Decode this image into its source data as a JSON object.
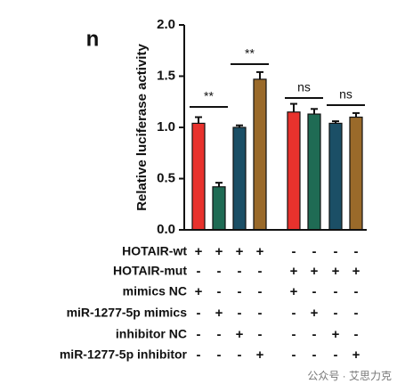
{
  "panel_label": "n",
  "chart_data": {
    "type": "bar",
    "ylabel": "Relative luciferase activity",
    "ylim": [
      0,
      2
    ],
    "yticks": [
      {
        "value": 0,
        "label": "0.0"
      },
      0.5,
      {
        "value": 1,
        "label": "1.0"
      },
      1.5,
      {
        "value": 2,
        "label": "2.0"
      }
    ],
    "values": [
      1.04,
      0.42,
      1.0,
      1.47,
      1.15,
      1.13,
      1.04,
      1.1
    ],
    "errors": [
      0.06,
      0.04,
      0.02,
      0.07,
      0.08,
      0.05,
      0.02,
      0.04
    ],
    "colors": [
      "#e8322d",
      "#1f6b54",
      "#1b4f66",
      "#9a6a2a",
      "#e8322d",
      "#1f6b54",
      "#1b4f66",
      "#9a6a2a"
    ],
    "annotations": [
      "**",
      "**",
      "ns",
      "ns"
    ],
    "conditions": [
      {
        "label": "HOTAIR-wt",
        "marks": [
          "+",
          "+",
          "+",
          "+",
          "-",
          "-",
          "-",
          "-"
        ]
      },
      {
        "label": "HOTAIR-mut",
        "marks": [
          "-",
          "-",
          "-",
          "-",
          "+",
          "+",
          "+",
          "+"
        ]
      },
      {
        "label": "mimics NC",
        "marks": [
          "+",
          "-",
          "-",
          "-",
          "+",
          "-",
          "-",
          "-"
        ]
      },
      {
        "label": "miR-1277-5p mimics",
        "marks": [
          "-",
          "+",
          "-",
          "-",
          "-",
          "+",
          "-",
          "-"
        ]
      },
      {
        "label": "inhibitor NC",
        "marks": [
          "-",
          "-",
          "+",
          "-",
          "-",
          "-",
          "+",
          "-"
        ]
      },
      {
        "label": "miR-1277-5p inhibitor",
        "marks": [
          "-",
          "-",
          "-",
          "+",
          "-",
          "-",
          "-",
          "+"
        ]
      }
    ]
  },
  "watermark": "公众号 · 艾思力克"
}
